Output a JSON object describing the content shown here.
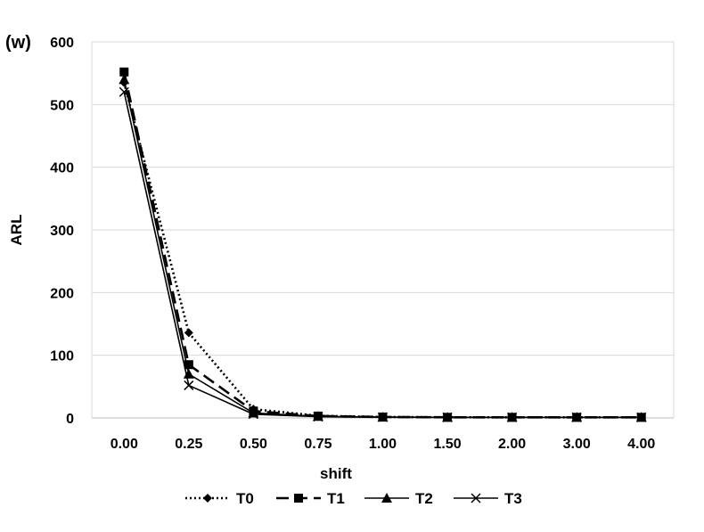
{
  "chart_data": {
    "type": "line",
    "panel_label": "(w)",
    "title": "",
    "xlabel": "shift",
    "ylabel": "ARL",
    "categories": [
      "0.00",
      "0.25",
      "0.50",
      "0.75",
      "1.00",
      "1.50",
      "2.00",
      "3.00",
      "4.00"
    ],
    "yticks": [
      "0",
      "100",
      "200",
      "300",
      "400",
      "500",
      "600"
    ],
    "ylim": [
      0,
      600
    ],
    "grid": true,
    "legend_position": "bottom",
    "series": [
      {
        "name": "T0",
        "marker": "diamond",
        "dash": "dotted",
        "values": [
          535,
          136,
          14,
          3.5,
          1.6,
          1.1,
          1.0,
          1.0,
          1.0
        ]
      },
      {
        "name": "T1",
        "marker": "square",
        "dash": "long-dash",
        "values": [
          552,
          85,
          11,
          3.0,
          1.5,
          1.0,
          1.0,
          1.0,
          1.0
        ]
      },
      {
        "name": "T2",
        "marker": "triangle",
        "dash": "solid",
        "values": [
          540,
          70,
          8,
          2.5,
          1.3,
          1.0,
          1.0,
          1.0,
          1.0
        ]
      },
      {
        "name": "T3",
        "marker": "x",
        "dash": "solid",
        "values": [
          520,
          52,
          6,
          2.0,
          1.2,
          1.0,
          1.0,
          1.0,
          1.0
        ]
      }
    ]
  }
}
